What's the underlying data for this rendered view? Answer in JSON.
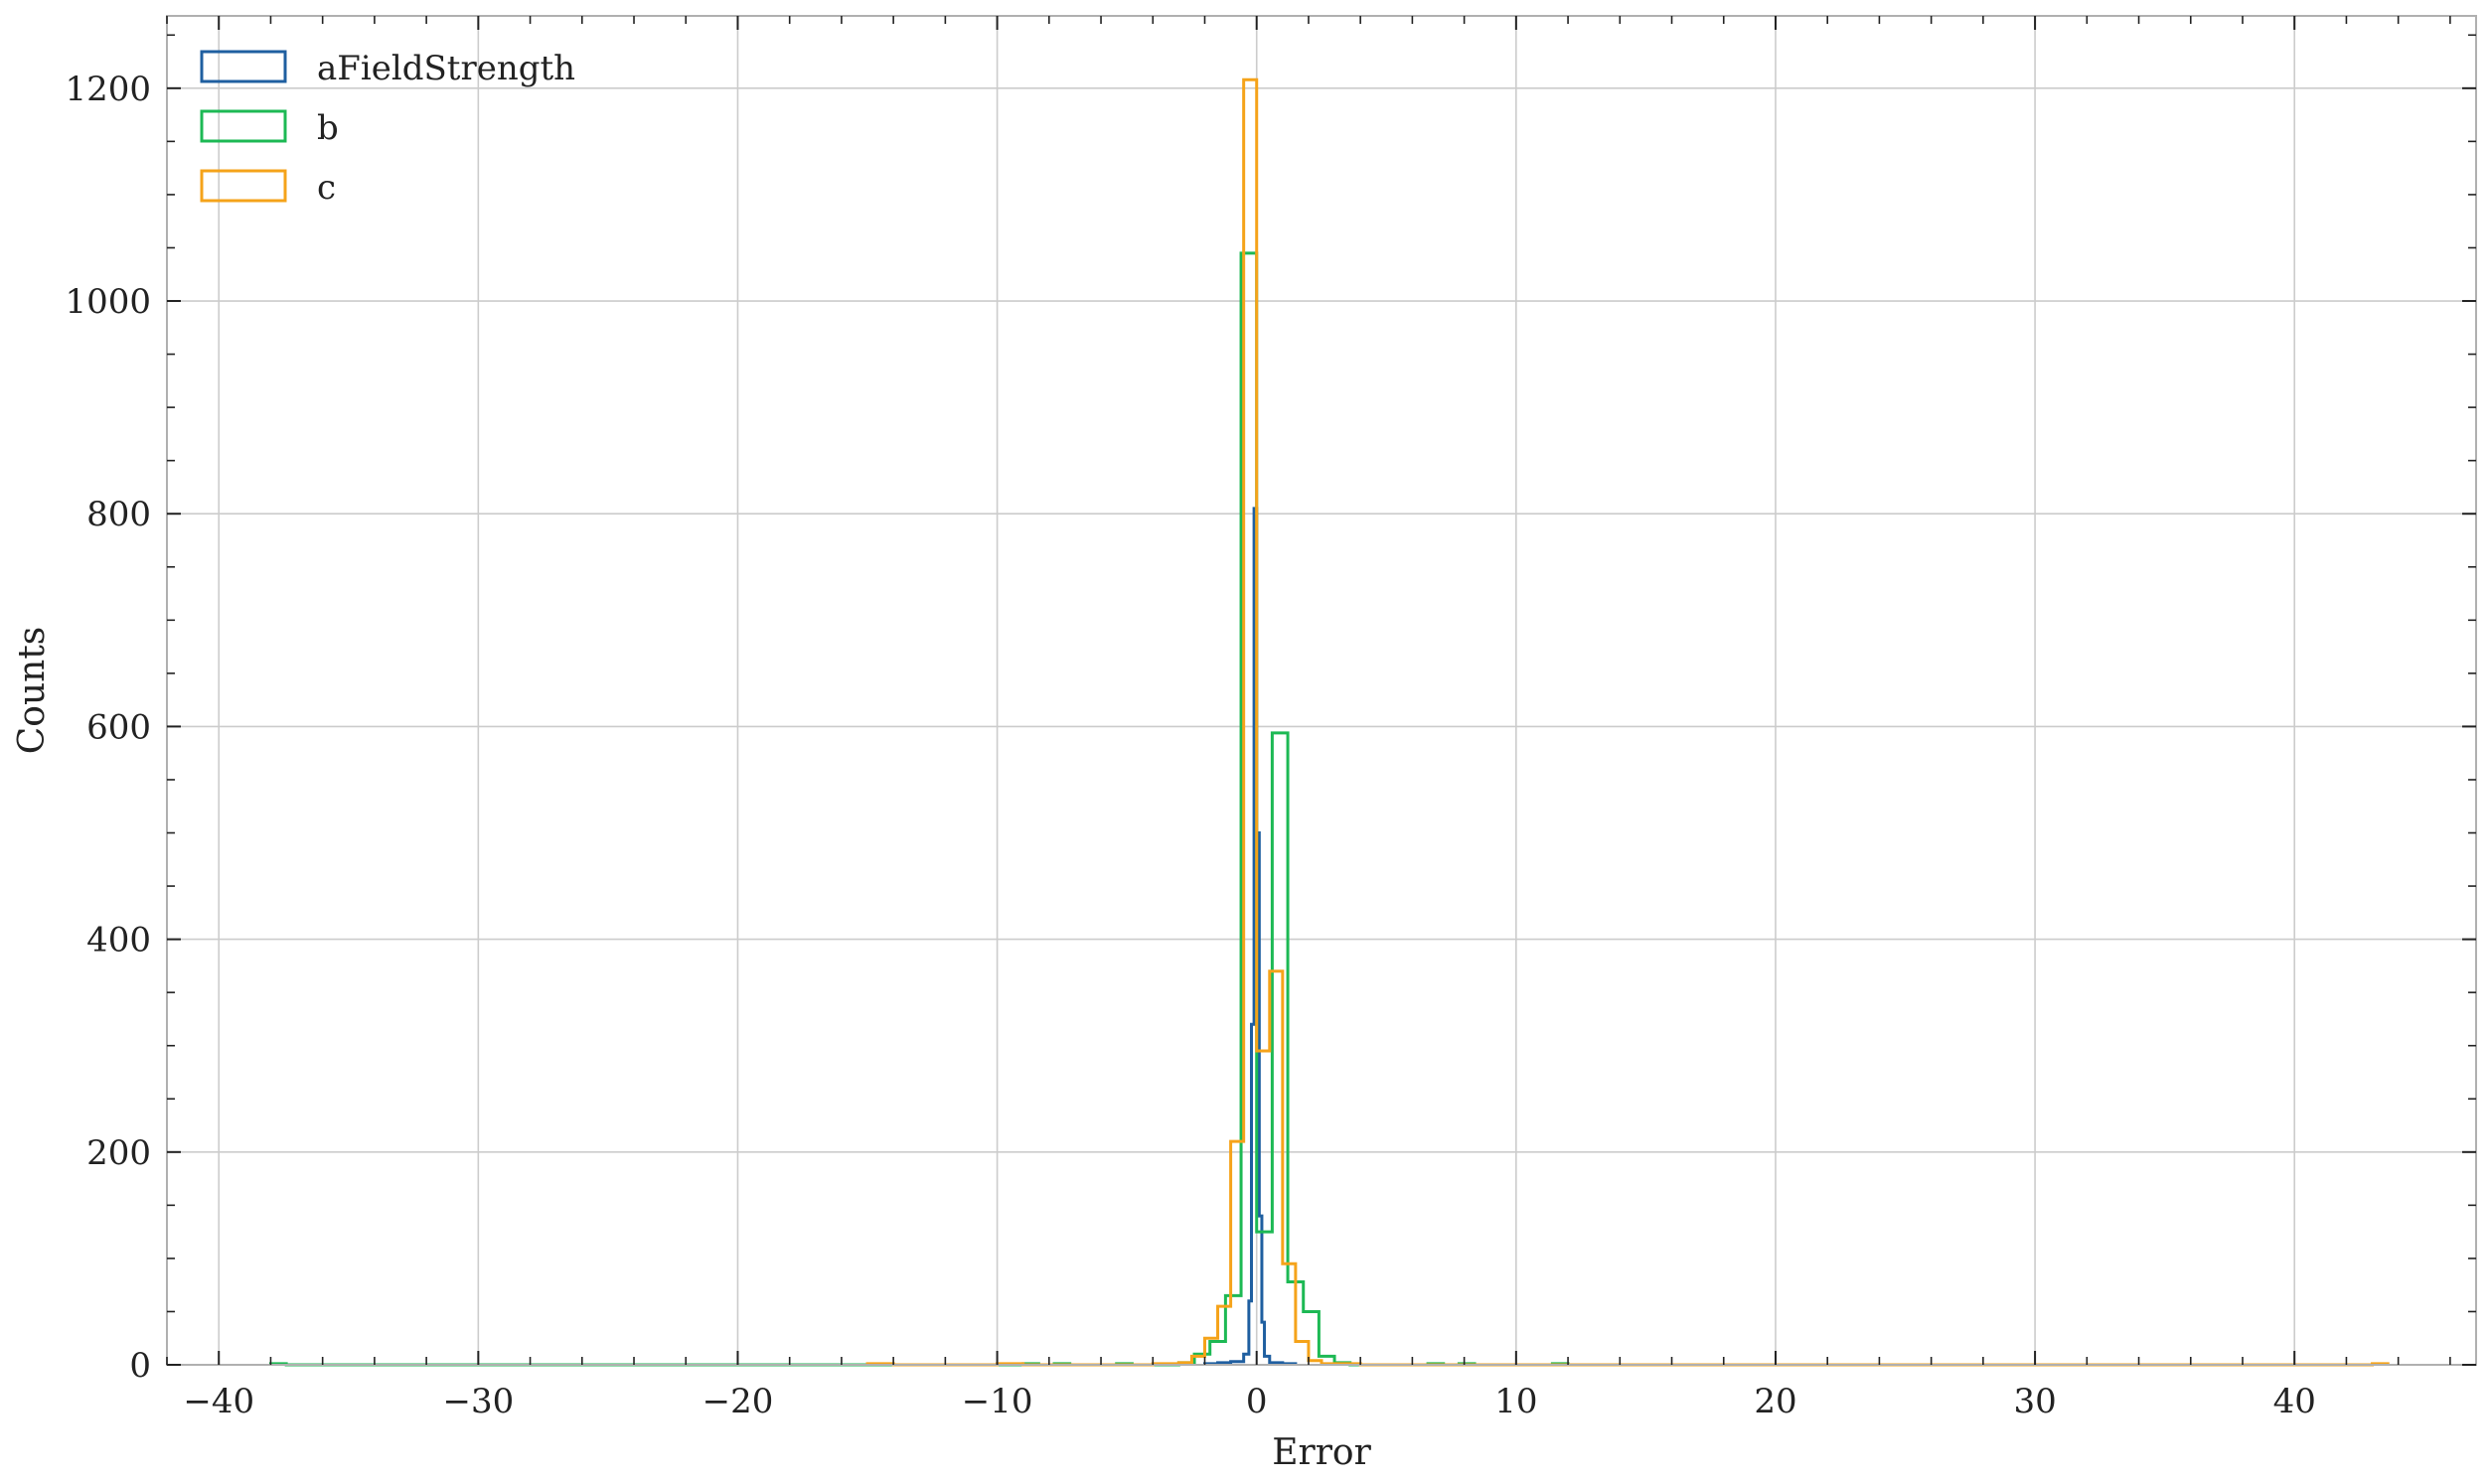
{
  "chart_data": {
    "type": "histogram",
    "title": "",
    "xlabel": "Error",
    "ylabel": "Counts",
    "xlim": [
      -42,
      47
    ],
    "ylim": [
      0,
      1268
    ],
    "x_ticks": [
      -40,
      -30,
      -20,
      -10,
      0,
      10,
      20,
      30,
      40
    ],
    "x_tick_labels": [
      "−40",
      "−30",
      "−20",
      "−10",
      "0",
      "10",
      "20",
      "30",
      "40"
    ],
    "y_ticks": [
      0,
      200,
      400,
      600,
      800,
      1000,
      1200
    ],
    "y_tick_labels": [
      "0",
      "200",
      "400",
      "600",
      "800",
      "1000",
      "1200"
    ],
    "grid": true,
    "legend_position": "top-left",
    "histtype": "step",
    "series": [
      {
        "name": "aFieldStrength",
        "color": "#1f5fa0",
        "bins": [
          [
            -2.0,
            -1.5,
            1
          ],
          [
            -1.5,
            -1.0,
            2
          ],
          [
            -1.0,
            -0.5,
            3
          ],
          [
            -0.5,
            -0.3,
            10
          ],
          [
            -0.3,
            -0.2,
            60
          ],
          [
            -0.2,
            -0.1,
            320
          ],
          [
            -0.1,
            0.0,
            805
          ],
          [
            0.0,
            0.1,
            500
          ],
          [
            0.1,
            0.2,
            140
          ],
          [
            0.2,
            0.3,
            40
          ],
          [
            0.3,
            0.5,
            8
          ],
          [
            0.5,
            1.0,
            2
          ],
          [
            1.0,
            1.5,
            1
          ]
        ]
      },
      {
        "name": "b",
        "color": "#1db954",
        "bins": [
          [
            -38.0,
            -37.4,
            1
          ],
          [
            -37.4,
            -15.0,
            0
          ],
          [
            -15.0,
            -9.0,
            0
          ],
          [
            -9.0,
            -8.4,
            1
          ],
          [
            -8.4,
            -7.8,
            0
          ],
          [
            -7.8,
            -7.2,
            1
          ],
          [
            -7.2,
            -5.4,
            0
          ],
          [
            -5.4,
            -4.8,
            1
          ],
          [
            -4.8,
            -3.0,
            0
          ],
          [
            -3.0,
            -2.4,
            2
          ],
          [
            -2.4,
            -1.8,
            10
          ],
          [
            -1.8,
            -1.2,
            22
          ],
          [
            -1.2,
            -0.6,
            65
          ],
          [
            -0.6,
            0.0,
            1045
          ],
          [
            0.0,
            0.6,
            125
          ],
          [
            0.6,
            1.2,
            594
          ],
          [
            1.2,
            1.8,
            78
          ],
          [
            1.8,
            2.4,
            50
          ],
          [
            2.4,
            3.0,
            8
          ],
          [
            3.0,
            3.6,
            2
          ],
          [
            3.6,
            6.6,
            0
          ],
          [
            6.6,
            7.2,
            1
          ],
          [
            7.2,
            7.8,
            0
          ],
          [
            7.8,
            8.4,
            1
          ],
          [
            8.4,
            11.4,
            0
          ],
          [
            11.4,
            12.0,
            1
          ]
        ]
      },
      {
        "name": "c",
        "color": "#f5a31a",
        "bins": [
          [
            -15.0,
            -14.0,
            1
          ],
          [
            -14.0,
            -10.0,
            0
          ],
          [
            -10.0,
            -9.0,
            1
          ],
          [
            -9.0,
            -4.0,
            0
          ],
          [
            -4.0,
            -3.0,
            1
          ],
          [
            -3.0,
            -2.5,
            2
          ],
          [
            -2.5,
            -2.0,
            8
          ],
          [
            -2.0,
            -1.5,
            25
          ],
          [
            -1.5,
            -1.0,
            55
          ],
          [
            -1.0,
            -0.5,
            210
          ],
          [
            -0.5,
            0.0,
            1208
          ],
          [
            0.0,
            0.5,
            295
          ],
          [
            0.5,
            1.0,
            370
          ],
          [
            1.0,
            1.5,
            95
          ],
          [
            1.5,
            2.0,
            22
          ],
          [
            2.0,
            2.5,
            4
          ],
          [
            2.5,
            3.0,
            1
          ],
          [
            3.0,
            4.0,
            1
          ],
          [
            4.0,
            43.0,
            0
          ],
          [
            43.0,
            43.6,
            1
          ]
        ]
      }
    ]
  }
}
